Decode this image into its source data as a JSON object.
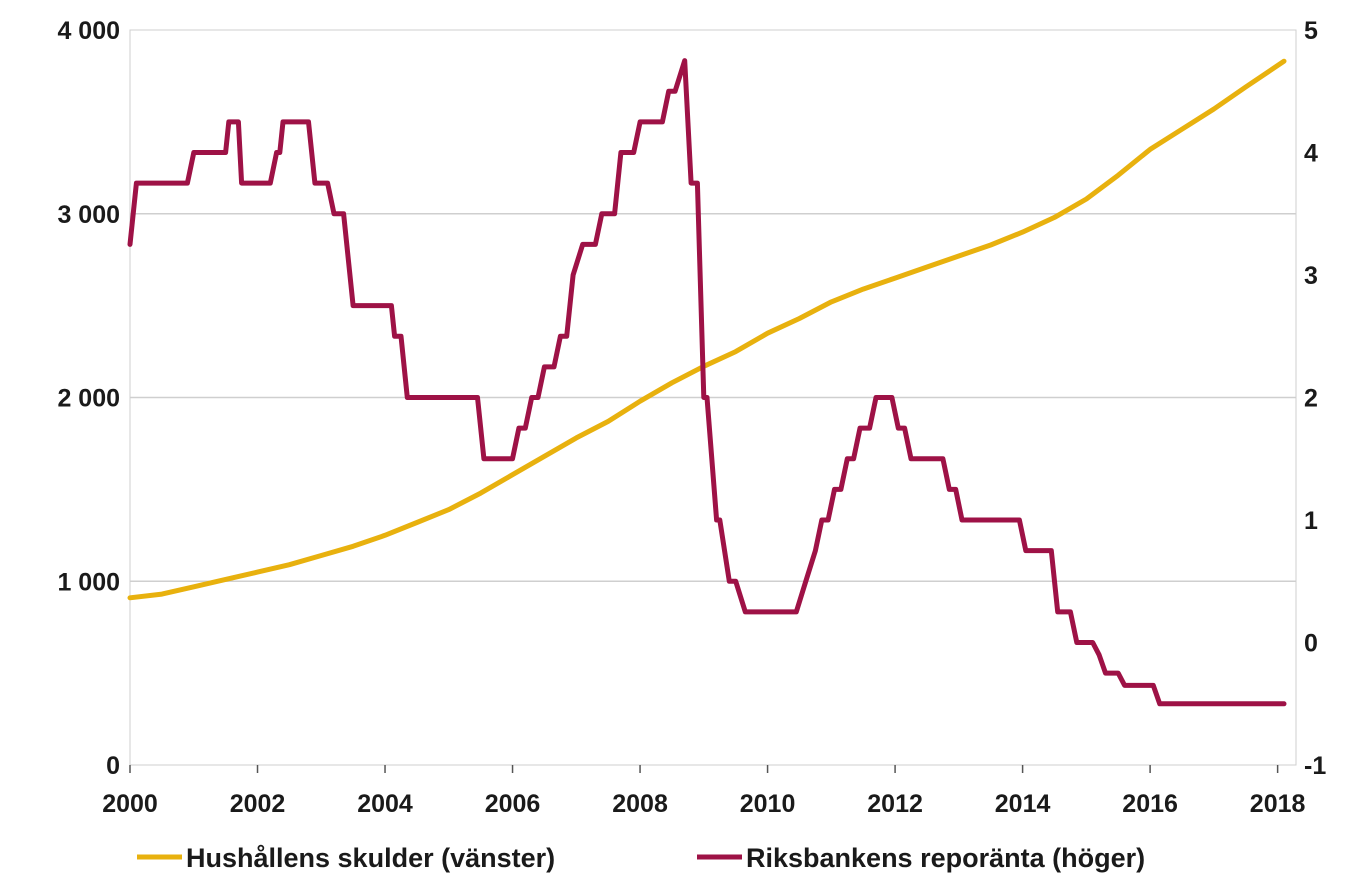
{
  "chart_data": {
    "type": "line",
    "x_unit": "year",
    "xlim": [
      2000,
      2018.1
    ],
    "x_ticks": [
      "2000",
      "2002",
      "2004",
      "2006",
      "2008",
      "2010",
      "2012",
      "2014",
      "2016",
      "2018"
    ],
    "y_left": {
      "lim": [
        0,
        4000
      ],
      "ticks": [
        "0",
        "1 000",
        "2 000",
        "3 000",
        "4 000"
      ]
    },
    "y_right": {
      "lim": [
        -1,
        5
      ],
      "ticks": [
        "-1",
        "0",
        "1",
        "2",
        "3",
        "4",
        "5"
      ]
    },
    "grid": "horizontal",
    "legend_position": "bottom",
    "series": [
      {
        "name": "Hushållens skulder (vänster)",
        "axis": "left",
        "color": "#E8B10E",
        "points": [
          [
            2000.0,
            910
          ],
          [
            2000.5,
            930
          ],
          [
            2001.0,
            970
          ],
          [
            2001.5,
            1010
          ],
          [
            2002.0,
            1050
          ],
          [
            2002.5,
            1090
          ],
          [
            2003.0,
            1140
          ],
          [
            2003.5,
            1190
          ],
          [
            2004.0,
            1250
          ],
          [
            2004.5,
            1320
          ],
          [
            2005.0,
            1390
          ],
          [
            2005.5,
            1480
          ],
          [
            2006.0,
            1580
          ],
          [
            2006.5,
            1680
          ],
          [
            2007.0,
            1780
          ],
          [
            2007.5,
            1870
          ],
          [
            2008.0,
            1980
          ],
          [
            2008.5,
            2080
          ],
          [
            2009.0,
            2170
          ],
          [
            2009.5,
            2250
          ],
          [
            2010.0,
            2350
          ],
          [
            2010.5,
            2430
          ],
          [
            2011.0,
            2520
          ],
          [
            2011.5,
            2590
          ],
          [
            2012.0,
            2650
          ],
          [
            2012.5,
            2710
          ],
          [
            2013.0,
            2770
          ],
          [
            2013.5,
            2830
          ],
          [
            2014.0,
            2900
          ],
          [
            2014.5,
            2980
          ],
          [
            2015.0,
            3080
          ],
          [
            2015.5,
            3210
          ],
          [
            2016.0,
            3350
          ],
          [
            2016.5,
            3460
          ],
          [
            2017.0,
            3570
          ],
          [
            2017.5,
            3690
          ],
          [
            2018.1,
            3830
          ]
        ]
      },
      {
        "name": "Riksbankens reporänta (höger)",
        "axis": "right",
        "color": "#9E1246",
        "points": [
          [
            2000.0,
            3.25
          ],
          [
            2000.1,
            3.75
          ],
          [
            2000.9,
            3.75
          ],
          [
            2001.0,
            4.0
          ],
          [
            2001.5,
            4.0
          ],
          [
            2001.55,
            4.25
          ],
          [
            2001.7,
            4.25
          ],
          [
            2001.75,
            3.75
          ],
          [
            2002.2,
            3.75
          ],
          [
            2002.3,
            4.0
          ],
          [
            2002.35,
            4.0
          ],
          [
            2002.4,
            4.25
          ],
          [
            2002.8,
            4.25
          ],
          [
            2002.9,
            3.75
          ],
          [
            2003.1,
            3.75
          ],
          [
            2003.2,
            3.5
          ],
          [
            2003.35,
            3.5
          ],
          [
            2003.5,
            2.75
          ],
          [
            2003.6,
            2.75
          ],
          [
            2004.1,
            2.75
          ],
          [
            2004.15,
            2.5
          ],
          [
            2004.25,
            2.5
          ],
          [
            2004.35,
            2.0
          ],
          [
            2005.45,
            2.0
          ],
          [
            2005.55,
            1.5
          ],
          [
            2006.0,
            1.5
          ],
          [
            2006.1,
            1.75
          ],
          [
            2006.2,
            1.75
          ],
          [
            2006.3,
            2.0
          ],
          [
            2006.4,
            2.0
          ],
          [
            2006.5,
            2.25
          ],
          [
            2006.65,
            2.25
          ],
          [
            2006.75,
            2.5
          ],
          [
            2006.85,
            2.5
          ],
          [
            2006.95,
            3.0
          ],
          [
            2007.1,
            3.25
          ],
          [
            2007.3,
            3.25
          ],
          [
            2007.4,
            3.5
          ],
          [
            2007.6,
            3.5
          ],
          [
            2007.7,
            4.0
          ],
          [
            2007.9,
            4.0
          ],
          [
            2008.0,
            4.25
          ],
          [
            2008.35,
            4.25
          ],
          [
            2008.45,
            4.5
          ],
          [
            2008.55,
            4.5
          ],
          [
            2008.7,
            4.75
          ],
          [
            2008.8,
            3.75
          ],
          [
            2008.9,
            3.75
          ],
          [
            2009.0,
            2.0
          ],
          [
            2009.05,
            2.0
          ],
          [
            2009.2,
            1.0
          ],
          [
            2009.25,
            1.0
          ],
          [
            2009.4,
            0.5
          ],
          [
            2009.5,
            0.5
          ],
          [
            2009.65,
            0.25
          ],
          [
            2010.45,
            0.25
          ],
          [
            2010.6,
            0.5
          ],
          [
            2010.75,
            0.75
          ],
          [
            2010.85,
            1.0
          ],
          [
            2010.95,
            1.0
          ],
          [
            2011.05,
            1.25
          ],
          [
            2011.15,
            1.25
          ],
          [
            2011.25,
            1.5
          ],
          [
            2011.35,
            1.5
          ],
          [
            2011.45,
            1.75
          ],
          [
            2011.6,
            1.75
          ],
          [
            2011.7,
            2.0
          ],
          [
            2011.95,
            2.0
          ],
          [
            2012.05,
            1.75
          ],
          [
            2012.15,
            1.75
          ],
          [
            2012.25,
            1.5
          ],
          [
            2012.75,
            1.5
          ],
          [
            2012.85,
            1.25
          ],
          [
            2012.95,
            1.25
          ],
          [
            2013.05,
            1.0
          ],
          [
            2013.95,
            1.0
          ],
          [
            2014.05,
            0.75
          ],
          [
            2014.45,
            0.75
          ],
          [
            2014.55,
            0.25
          ],
          [
            2014.75,
            0.25
          ],
          [
            2014.85,
            0.0
          ],
          [
            2015.1,
            0.0
          ],
          [
            2015.2,
            -0.1
          ],
          [
            2015.3,
            -0.25
          ],
          [
            2015.5,
            -0.25
          ],
          [
            2015.6,
            -0.35
          ],
          [
            2016.05,
            -0.35
          ],
          [
            2016.15,
            -0.5
          ],
          [
            2018.1,
            -0.5
          ]
        ]
      }
    ]
  }
}
